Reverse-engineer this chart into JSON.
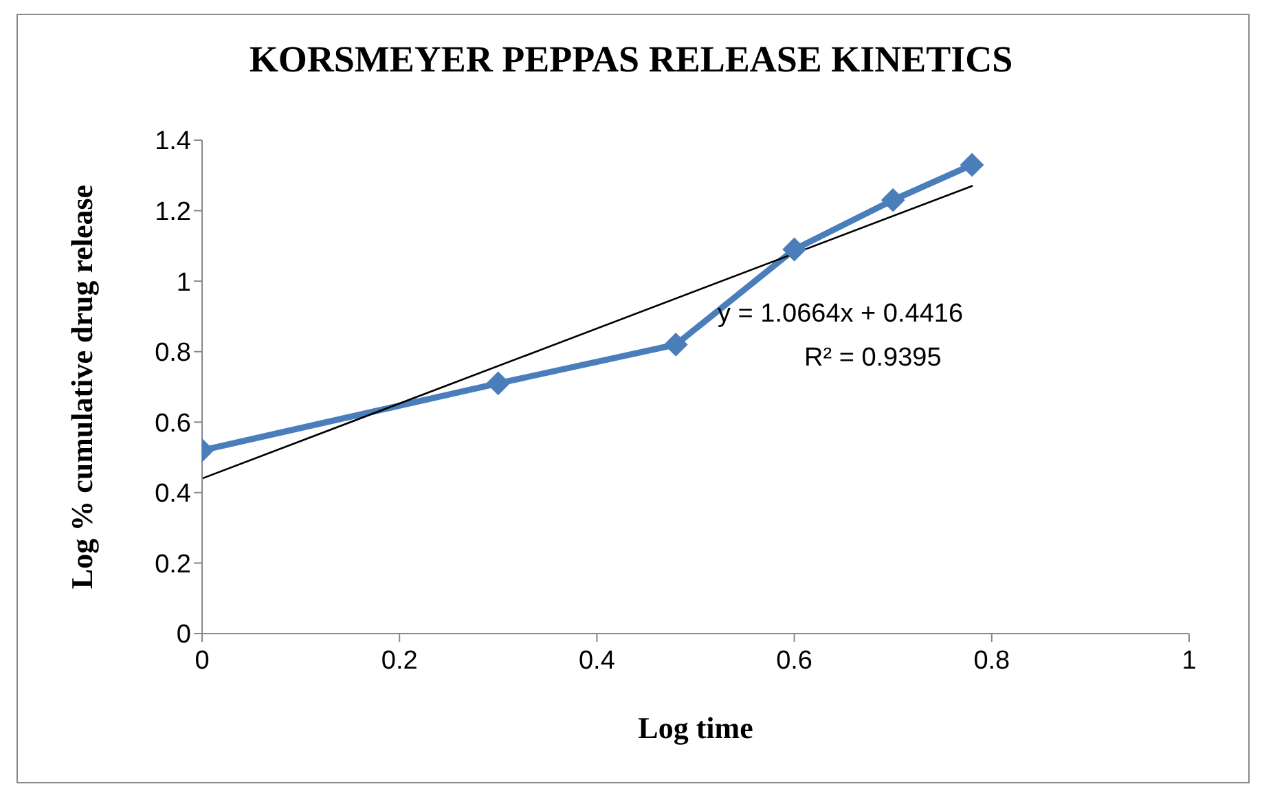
{
  "chart_data": {
    "type": "line",
    "title": "KORSMEYER PEPPAS RELEASE KINETICS",
    "xlabel": "Log  time",
    "ylabel": "Log % cumulative drug release",
    "x": [
      0,
      0.3,
      0.48,
      0.6,
      0.7,
      0.78
    ],
    "series": [
      {
        "color": "#4a7ebb",
        "values": [
          0.52,
          0.71,
          0.82,
          1.09,
          1.23,
          1.33
        ],
        "marker": "diamond"
      },
      {
        "type": "line",
        "color": "#000000",
        "x": [
          0,
          0.78
        ],
        "values": [
          0.44,
          1.27
        ],
        "marker": "none"
      }
    ],
    "annotations": [
      "y = 1.0664x + 0.4416",
      "R² = 0.9395"
    ],
    "xlim": [
      0,
      1
    ],
    "xticks": [
      0,
      0.2,
      0.4,
      0.6,
      0.8,
      1
    ],
    "ylim": [
      0,
      1.4
    ],
    "yticks": [
      0,
      0.2,
      0.4,
      0.6,
      0.8,
      1,
      1.2,
      1.4
    ],
    "grid": false,
    "legend": false
  }
}
